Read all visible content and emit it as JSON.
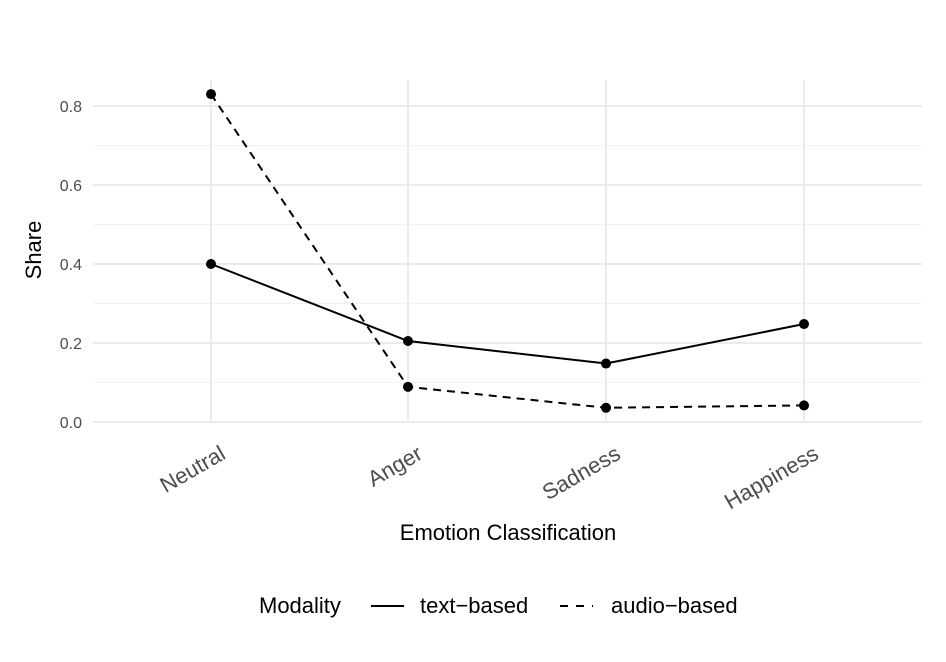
{
  "chart_data": {
    "type": "line",
    "categories": [
      "Neutral",
      "Anger",
      "Sadness",
      "Happiness"
    ],
    "series": [
      {
        "name": "text−based",
        "values": [
          0.4,
          0.205,
          0.148,
          0.248
        ],
        "linetype": "solid",
        "color": "#000000"
      },
      {
        "name": "audio−based",
        "values": [
          0.83,
          0.089,
          0.036,
          0.042
        ],
        "linetype": "dashed",
        "color": "#000000"
      }
    ],
    "title": "",
    "xlabel": "Emotion Classification",
    "ylabel": "Share",
    "ylim": [
      0,
      0.87
    ],
    "yticks": [
      0.0,
      0.2,
      0.4,
      0.6,
      0.8
    ],
    "ytick_labels": [
      "0.0",
      "0.2",
      "0.4",
      "0.6",
      "0.8"
    ],
    "grid": true,
    "legend": {
      "title": "Modality",
      "position": "bottom"
    }
  }
}
